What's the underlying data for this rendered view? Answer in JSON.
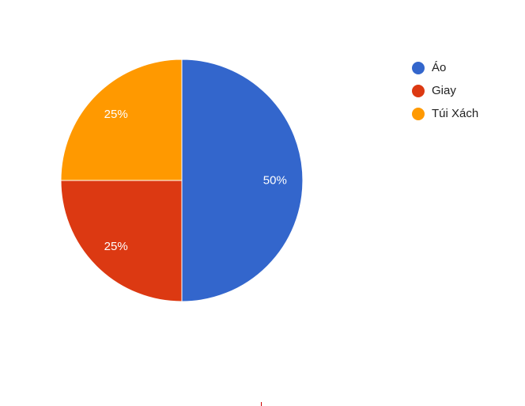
{
  "chart_data": {
    "type": "pie",
    "title": "",
    "categories": [
      "Áo",
      "Giay",
      "Túi Xách"
    ],
    "values": [
      50,
      25,
      25
    ],
    "labels": [
      "50%",
      "25%",
      "25%"
    ],
    "colors": [
      "#3366cc",
      "#dc3912",
      "#ff9900"
    ],
    "legend_position": "right",
    "slice_order": "clockwise-from-top"
  },
  "legend": {
    "items": [
      {
        "label": "Áo",
        "color": "#3366cc"
      },
      {
        "label": "Giay",
        "color": "#dc3912"
      },
      {
        "label": "Túi Xách",
        "color": "#ff9900"
      }
    ]
  }
}
